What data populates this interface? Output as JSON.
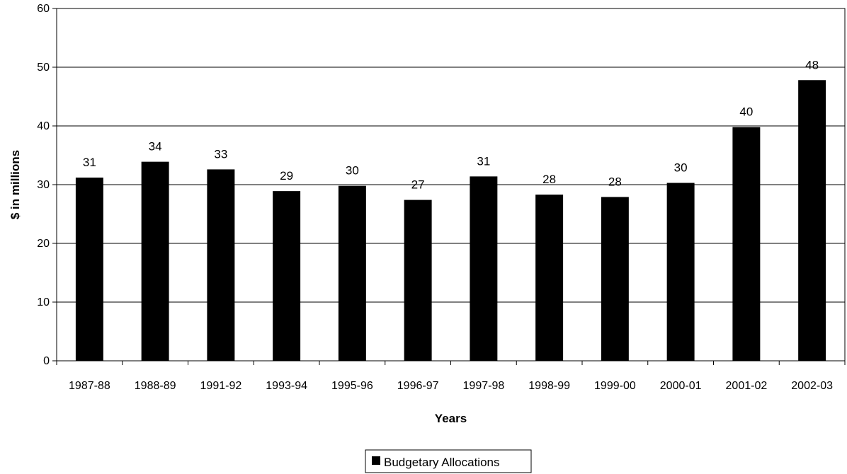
{
  "chart_data": {
    "type": "bar",
    "categories": [
      "1987-88",
      "1988-89",
      "1991-92",
      "1993-94",
      "1995-96",
      "1996-97",
      "1997-98",
      "1998-99",
      "1999-00",
      "2000-01",
      "2001-02",
      "2002-03"
    ],
    "series": [
      {
        "name": "Budgetary Allocations",
        "values": [
          31.2,
          33.9,
          32.6,
          28.9,
          29.8,
          27.4,
          31.4,
          28.3,
          27.9,
          30.3,
          39.8,
          47.8
        ],
        "data_labels": [
          "31",
          "34",
          "33",
          "29",
          "30",
          "27",
          "31",
          "28",
          "28",
          "30",
          "40",
          "48"
        ],
        "color": "#000000"
      }
    ],
    "title": "",
    "xlabel": "Years",
    "ylabel": "$ in millions",
    "ylim": [
      0,
      60
    ],
    "yticks": [
      0,
      10,
      20,
      30,
      40,
      50,
      60
    ],
    "grid": true,
    "legend_position": "bottom"
  }
}
